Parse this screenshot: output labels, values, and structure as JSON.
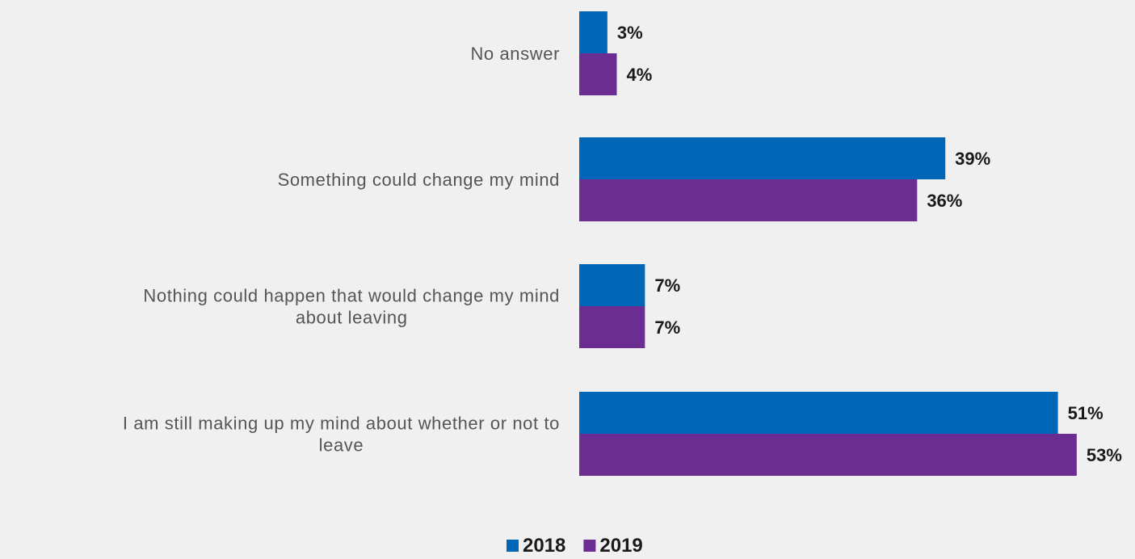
{
  "chart_data": {
    "type": "bar",
    "orientation": "horizontal",
    "categories": [
      "No answer",
      "Something could change my mind",
      "Nothing could happen that would change my mind about leaving",
      "I am still making up my mind about whether or not to leave"
    ],
    "category_lines": [
      [
        "No answer"
      ],
      [
        "Something could change my mind"
      ],
      [
        "Nothing could happen that would change my mind",
        "about leaving"
      ],
      [
        "I am still making up my mind about whether or not to",
        "leave"
      ]
    ],
    "series": [
      {
        "name": "2018",
        "color": "#0066b8",
        "values": [
          3,
          39,
          7,
          51
        ],
        "labels": [
          "3%",
          "39%",
          "7%",
          "51%"
        ]
      },
      {
        "name": "2019",
        "color": "#6b2d92",
        "values": [
          4,
          36,
          7,
          53
        ],
        "labels": [
          "4%",
          "36%",
          "7%",
          "53%"
        ]
      }
    ],
    "legend_position": "bottom-center",
    "grid": false,
    "xlim": [
      0,
      53
    ]
  }
}
